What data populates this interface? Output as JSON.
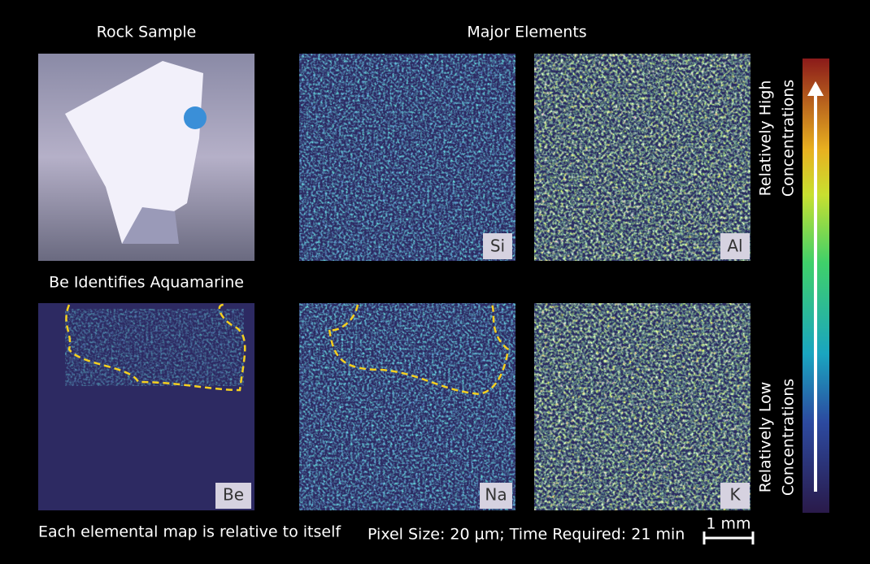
{
  "headings": {
    "rock_sample": "Rock Sample",
    "major_elements": "Major Elements",
    "be_note": "Be Identifies Aquamarine"
  },
  "maps": {
    "top": [
      "Si",
      "Al"
    ],
    "bottom": [
      "Be",
      "Na",
      "K"
    ]
  },
  "colorbar": {
    "high": [
      "Relatively High",
      "Concentrations"
    ],
    "low": [
      "Relatively Low",
      "Concentrations"
    ]
  },
  "footer": {
    "note": "Each elemental map is relative to itself",
    "acquisition": "Pixel Size: 20 µm; Time Required: 21 min",
    "scale_bar": "1 mm"
  }
}
